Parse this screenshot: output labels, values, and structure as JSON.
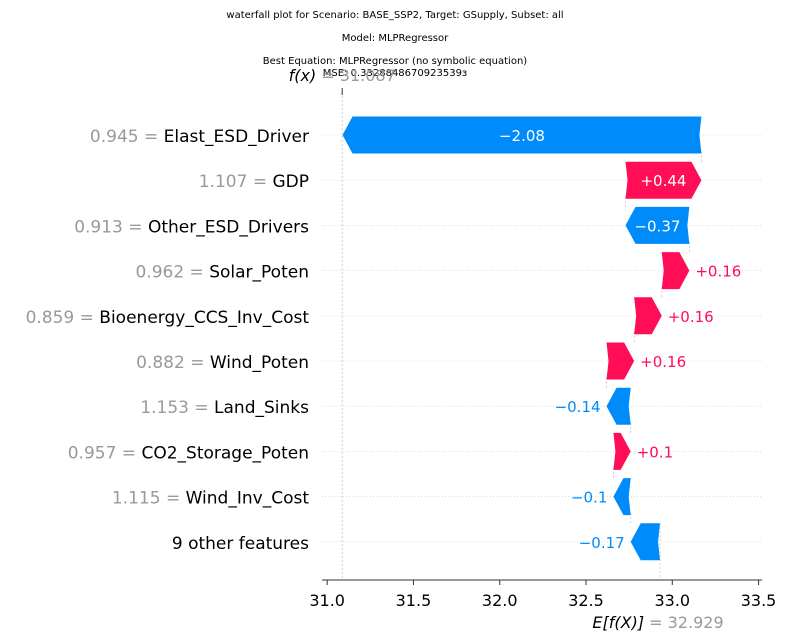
{
  "title_lines": [
    "waterfall plot for Scenario: BASE_SSP2, Target: GSupply, Subset: all",
    "Model: MLPRegressor",
    "Best Equation: MLPRegressor (no symbolic equation)",
    "MSE: 0.3328848670923539з"
  ],
  "chart_data": {
    "type": "waterfall",
    "base_value": 32.929,
    "final_value": 31.087,
    "fx_label": "f(x)",
    "fx_value_text": "31.087",
    "ex_label": "E[f(X)]",
    "ex_value_text": "32.929",
    "xlim": [
      30.97,
      33.52
    ],
    "xticks": [
      31.0,
      31.5,
      32.0,
      32.5,
      33.0,
      33.5
    ],
    "xtick_labels": [
      "31.0",
      "31.5",
      "32.0",
      "32.5",
      "33.0",
      "33.5"
    ],
    "colors": {
      "positive": "#ff0d57",
      "negative": "#008bfb",
      "feature_value": "#999999",
      "feature_name": "#000000"
    },
    "features": [
      {
        "value": "0.945",
        "name": "Elast_ESD_Driver",
        "shap": -2.08,
        "label": "−2.08"
      },
      {
        "value": "1.107",
        "name": "GDP",
        "shap": 0.44,
        "label": "+0.44"
      },
      {
        "value": "0.913",
        "name": "Other_ESD_Drivers",
        "shap": -0.37,
        "label": "−0.37"
      },
      {
        "value": "0.962",
        "name": "Solar_Poten",
        "shap": 0.16,
        "label": "+0.16"
      },
      {
        "value": "0.859",
        "name": "Bioenergy_CCS_Inv_Cost",
        "shap": 0.16,
        "label": "+0.16"
      },
      {
        "value": "0.882",
        "name": "Wind_Poten",
        "shap": 0.16,
        "label": "+0.16"
      },
      {
        "value": "1.153",
        "name": "Land_Sinks",
        "shap": -0.14,
        "label": "−0.14"
      },
      {
        "value": "0.957",
        "name": "CO2_Storage_Poten",
        "shap": 0.1,
        "label": "+0.1"
      },
      {
        "value": "1.115",
        "name": "Wind_Inv_Cost",
        "shap": -0.1,
        "label": "−0.1"
      },
      {
        "value": "",
        "name": "9 other features",
        "shap": -0.17,
        "label": "−0.17"
      }
    ]
  }
}
